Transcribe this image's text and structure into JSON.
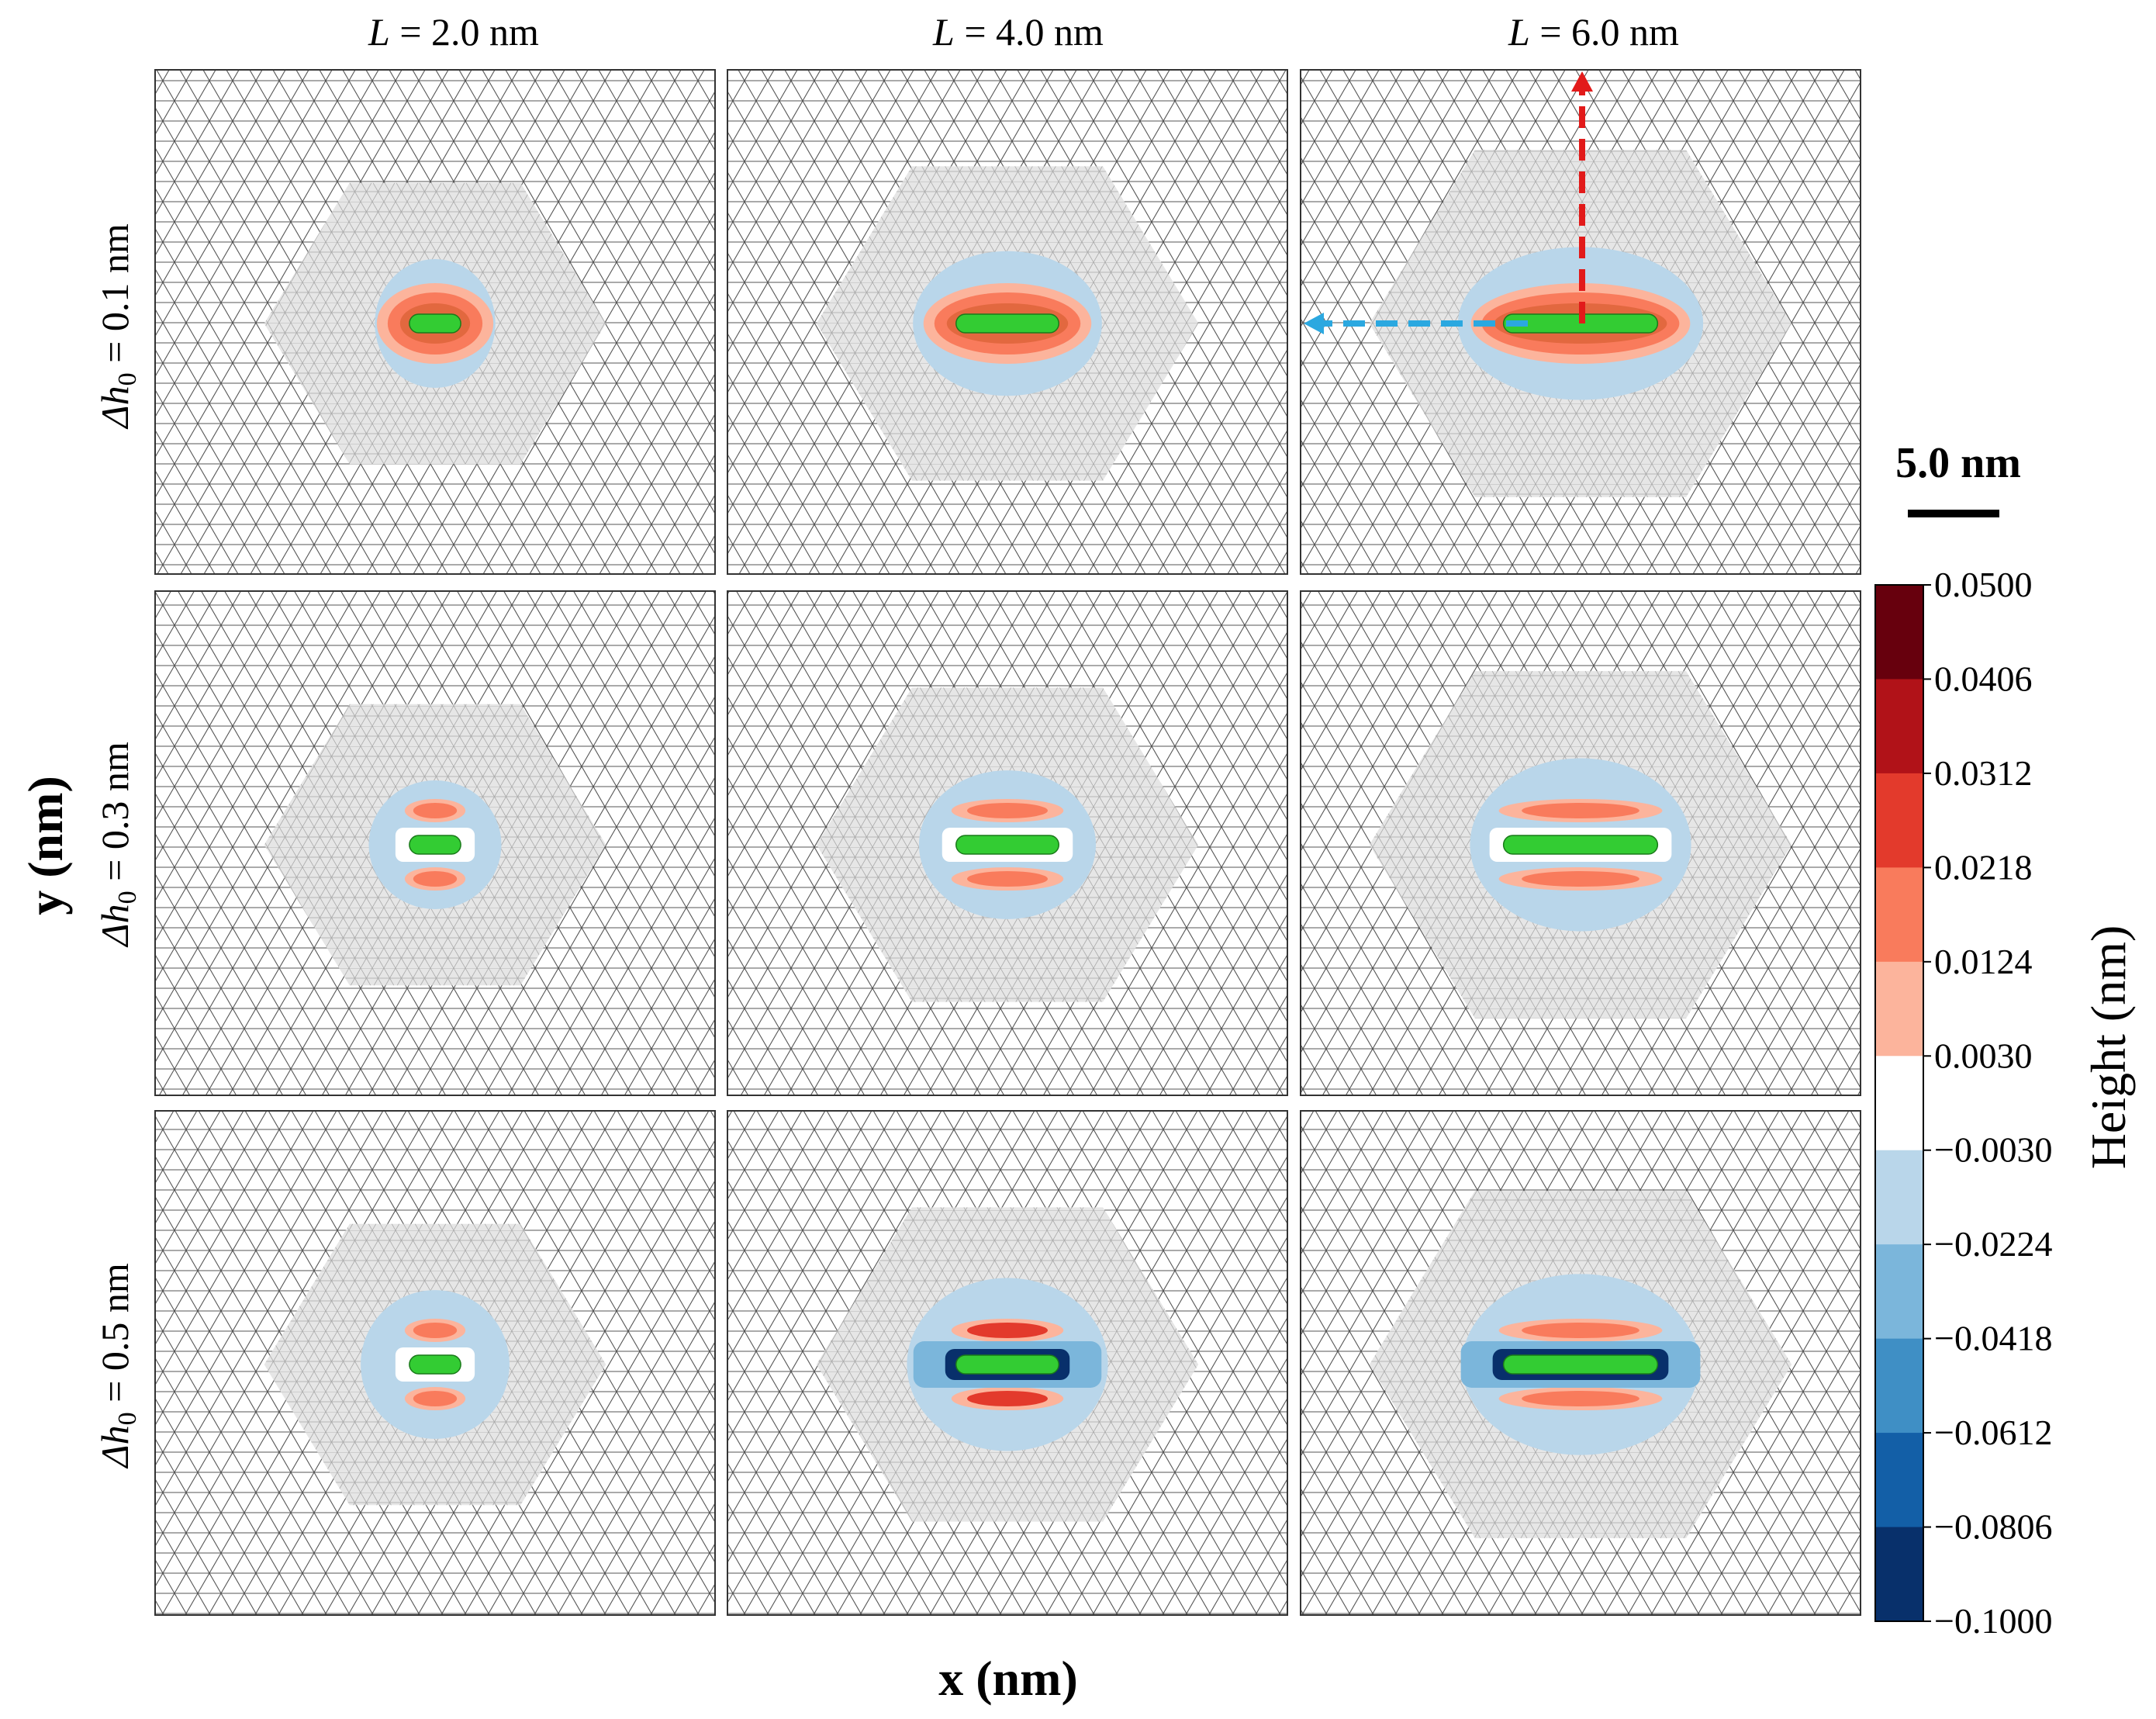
{
  "chart_data": {
    "type": "heatmap",
    "description_labels": {
      "xlabel": "x (nm)",
      "ylabel": "y (nm)",
      "colorbar_label": "Height (nm)",
      "scale_bar": "5.0 nm"
    },
    "columns": [
      {
        "pre": "L",
        "value": " = 2.0 nm",
        "L_nm": 2.0
      },
      {
        "pre": "L",
        "value": " = 4.0 nm",
        "L_nm": 4.0
      },
      {
        "pre": "L",
        "value": " = 6.0 nm",
        "L_nm": 6.0
      }
    ],
    "rows": [
      {
        "pre": "Δh",
        "sub": "0",
        "value": " = 0.1 nm",
        "dh0_nm": 0.1
      },
      {
        "pre": "Δh",
        "sub": "0",
        "value": " = 0.3 nm",
        "dh0_nm": 0.3
      },
      {
        "pre": "Δh",
        "sub": "0",
        "value": " = 0.5 nm",
        "dh0_nm": 0.5
      }
    ],
    "colorbar": {
      "ticks": [
        "0.0500",
        "0.0406",
        "0.0312",
        "0.0218",
        "0.0124",
        "0.0030",
        "−0.0030",
        "−0.0224",
        "−0.0418",
        "−0.0612",
        "−0.0806",
        "−0.1000"
      ],
      "tick_values": [
        0.05,
        0.0406,
        0.0312,
        0.0218,
        0.0124,
        0.003,
        -0.003,
        -0.0224,
        -0.0418,
        -0.0612,
        -0.0806,
        -0.1
      ],
      "bin_colors": [
        "#67000d",
        "#b11218",
        "#e33a2c",
        "#f97b5c",
        "#fcb49c",
        "#ffffff",
        "#b9d6ea",
        "#7bb6db",
        "#3f8fc5",
        "#135fa7",
        "#08306b"
      ]
    },
    "panels": [
      {
        "row": 0,
        "col": 0,
        "hex_radius_nm": 8.5,
        "depression_rx_nm": 3.0,
        "depression_ry_nm": 3.2,
        "bumps": "side"
      },
      {
        "row": 0,
        "col": 1,
        "hex_radius_nm": 9.5,
        "depression_rx_nm": 4.7,
        "depression_ry_nm": 3.6,
        "bumps": "side"
      },
      {
        "row": 0,
        "col": 2,
        "hex_radius_nm": 10.5,
        "depression_rx_nm": 6.1,
        "depression_ry_nm": 3.8,
        "bumps": "side"
      },
      {
        "row": 1,
        "col": 0,
        "hex_radius_nm": 8.5,
        "depression_rx_nm": 3.3,
        "depression_ry_nm": 3.2,
        "bumps": "upper-lower"
      },
      {
        "row": 1,
        "col": 1,
        "hex_radius_nm": 9.5,
        "depression_rx_nm": 4.4,
        "depression_ry_nm": 3.7,
        "bumps": "upper-lower"
      },
      {
        "row": 1,
        "col": 2,
        "hex_radius_nm": 10.5,
        "depression_rx_nm": 5.5,
        "depression_ry_nm": 4.3,
        "bumps": "upper-lower"
      },
      {
        "row": 2,
        "col": 0,
        "hex_radius_nm": 8.5,
        "depression_rx_nm": 3.7,
        "depression_ry_nm": 3.7,
        "bumps": "upper-lower"
      },
      {
        "row": 2,
        "col": 1,
        "hex_radius_nm": 9.5,
        "depression_rx_nm": 5.0,
        "depression_ry_nm": 4.3,
        "bumps": "upper-lower-strong"
      },
      {
        "row": 2,
        "col": 2,
        "hex_radius_nm": 10.5,
        "depression_rx_nm": 5.9,
        "depression_ry_nm": 4.5,
        "bumps": "upper-lower"
      }
    ],
    "arrows": [
      {
        "panel_row": 0,
        "panel_col": 2,
        "direction": "up",
        "color": "#e21a1a"
      },
      {
        "panel_row": 0,
        "panel_col": 2,
        "direction": "left",
        "color": "#2ba8e0"
      }
    ]
  }
}
